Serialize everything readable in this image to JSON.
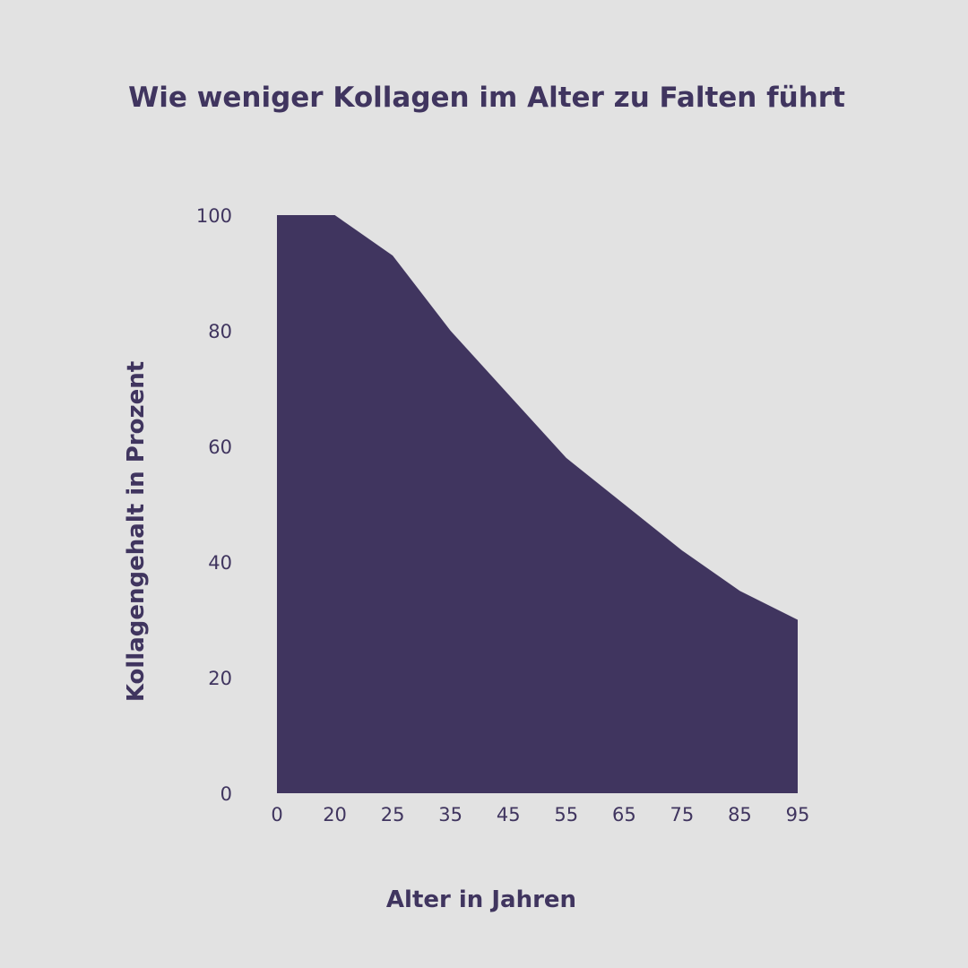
{
  "colors": {
    "background": "#e2e2e2",
    "fill": "#40355f",
    "text": "#40355f"
  },
  "chart_data": {
    "type": "area",
    "title": "Wie weniger Kollagen im Alter zu Falten führt",
    "xlabel": "Alter in Jahren",
    "ylabel": "Kollagengehalt in Prozent",
    "categories": [
      "0",
      "20",
      "25",
      "35",
      "45",
      "55",
      "65",
      "75",
      "85",
      "95"
    ],
    "values": [
      100,
      100,
      93,
      80,
      69,
      58,
      50,
      42,
      35,
      30
    ],
    "yticks": [
      0,
      20,
      40,
      60,
      80,
      100
    ],
    "ylim": [
      0,
      100
    ],
    "grid": false,
    "legend": "none"
  }
}
